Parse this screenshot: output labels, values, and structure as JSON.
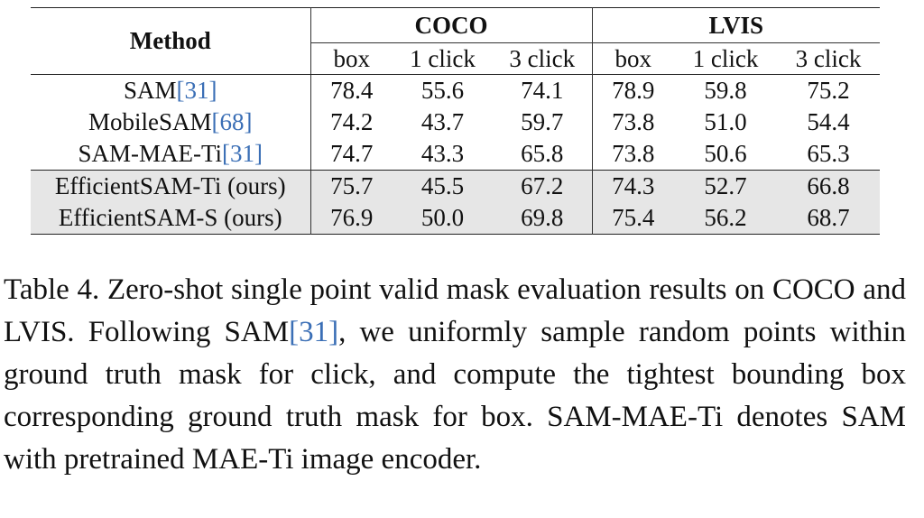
{
  "table": {
    "method_header": "Method",
    "groups": [
      "COCO",
      "LVIS"
    ],
    "subheaders": [
      "box",
      "1 click",
      "3 click",
      "box",
      "1 click",
      "3 click"
    ],
    "rows": [
      {
        "name": "SAM",
        "cite": "[31]",
        "values": [
          "78.4",
          "55.6",
          "74.1",
          "78.9",
          "59.8",
          "75.2"
        ],
        "ours": false
      },
      {
        "name": "MobileSAM",
        "cite": "[68]",
        "values": [
          "74.2",
          "43.7",
          "59.7",
          "73.8",
          "51.0",
          "54.4"
        ],
        "ours": false
      },
      {
        "name": "SAM-MAE-Ti",
        "cite": "[31]",
        "values": [
          "74.7",
          "43.3",
          "65.8",
          "73.8",
          "50.6",
          "65.3"
        ],
        "ours": false
      },
      {
        "name": "EfficientSAM-Ti (ours)",
        "cite": "",
        "values": [
          "75.7",
          "45.5",
          "67.2",
          "74.3",
          "52.7",
          "66.8"
        ],
        "ours": true
      },
      {
        "name": "EfficientSAM-S (ours)",
        "cite": "",
        "values": [
          "76.9",
          "50.0",
          "69.8",
          "75.4",
          "56.2",
          "68.7"
        ],
        "ours": true
      }
    ]
  },
  "caption": {
    "part1": "Table 4. Zero-shot single point valid mask evaluation results on COCO and LVIS. Following SAM",
    "cite": "[31]",
    "part2": ", we uniformly sample random points within ground truth mask for click, and compute the tightest bounding box corresponding ground truth mask for box. SAM-MAE-Ti denotes SAM with pretrained MAE-Ti image encoder."
  },
  "colors": {
    "citation": "#3b6fb6",
    "ours_row_bg": "#e6e6e6"
  }
}
